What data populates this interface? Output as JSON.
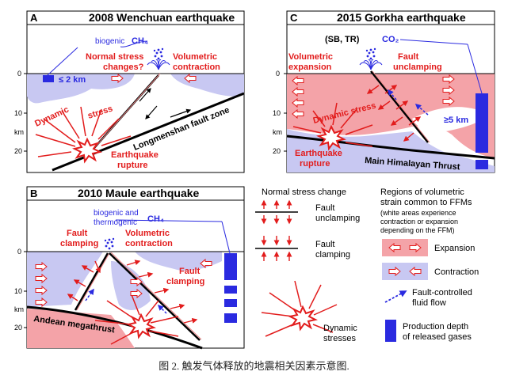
{
  "panelA": {
    "letter": "A",
    "title": "2008 Wenchuan earthquake",
    "gas_label": "biogenic",
    "gas": "CH₄",
    "normal_stress": [
      "Normal stress",
      "changes?"
    ],
    "volumetric": [
      "Volumetric",
      "contraction"
    ],
    "depth_note": "≤ 2 km",
    "dynamic_1": "Dynamic",
    "dynamic_2": "stress",
    "fault_zone": "Longmenshan fault zone",
    "rupture": [
      "Earthquake",
      "rupture"
    ],
    "axis": [
      "0",
      "10",
      "km",
      "20"
    ]
  },
  "panelB": {
    "letter": "B",
    "title": "2010 Maule earthquake",
    "gas_label": [
      "biogenic and",
      "thermogenic"
    ],
    "gas": "CH₄",
    "fault_clamping_left": [
      "Fault",
      "clamping"
    ],
    "volumetric": [
      "Volumetric",
      "contraction"
    ],
    "fault_clamping_right": [
      "Fault",
      "clamping"
    ],
    "megathrust": "Andean megathrust",
    "axis": [
      "0",
      "10",
      "km",
      "20"
    ]
  },
  "panelC": {
    "letter": "C",
    "title": "2015 Gorkha earthquake",
    "sbtr": "(SB, TR)",
    "gas": "CO₂",
    "volumetric": [
      "Volumetric",
      "expansion"
    ],
    "unclamping": [
      "Fault",
      "unclamping"
    ],
    "dynamic": "Dynamic stress",
    "depth_note": "≥5 km",
    "rupture": [
      "Earthquake",
      "rupture"
    ],
    "thrust": "Main Himalayan Thrust",
    "axis": [
      "0",
      "10",
      "km",
      "20"
    ]
  },
  "legend": {
    "normal_title": "Normal stress change",
    "unclamping": [
      "Fault",
      "unclamping"
    ],
    "clamping": [
      "Fault",
      "clamping"
    ],
    "dynamic": [
      "Dynamic",
      "stresses"
    ],
    "regions_title": [
      "Regions of volumetric",
      "strain common to FFMs"
    ],
    "regions_note": [
      "(white areas experience",
      "contraction or expansion",
      "depending on the FFM)"
    ],
    "expansion": "Expansion",
    "contraction": "Contraction",
    "fluid_flow": [
      "Fault-controlled",
      "fluid flow"
    ],
    "production": [
      "Production depth",
      "of released gases"
    ]
  },
  "colors": {
    "expansion": "#f4a3a8",
    "contraction": "#c8c8f2",
    "red": "#e21c1c",
    "blue": "#2a2ae0"
  },
  "caption": "图 2.  触发气体释放的地震相关因素示意图."
}
